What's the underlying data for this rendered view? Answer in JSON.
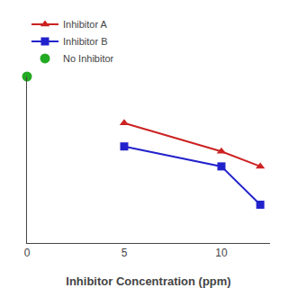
{
  "chart_data": {
    "type": "line",
    "x_label": "Inhibitor Concentration (ppm)",
    "series": [
      {
        "name": "Inhibitor A",
        "color": "#cc2222",
        "marker": "triangle",
        "x": [
          5,
          10,
          12
        ],
        "values": [
          0.72,
          0.55,
          0.46
        ]
      },
      {
        "name": "Inhibitor B",
        "color": "#2222cc",
        "marker": "square",
        "x": [
          5,
          10,
          12
        ],
        "values": [
          0.58,
          0.46,
          0.23
        ]
      },
      {
        "name": "No Inhibitor",
        "color": "#22aa22",
        "marker": "circle",
        "type": "scatter",
        "x": [
          0
        ],
        "values": [
          1.0
        ]
      }
    ],
    "xlim": [
      0,
      12.5
    ],
    "xticks": [
      0,
      5,
      10
    ],
    "ylim": [
      0,
      1.0
    ],
    "tick_labels": "x",
    "grid": false,
    "legend": "upper left"
  }
}
